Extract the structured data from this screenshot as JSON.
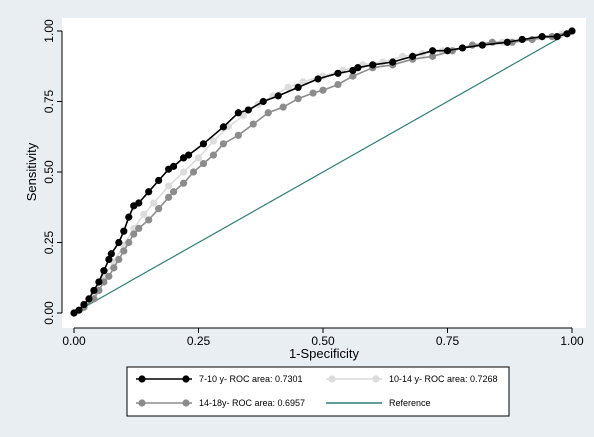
{
  "chart_data": {
    "type": "line",
    "title": "",
    "xlabel": "1-Specificity",
    "ylabel": "Sensitivity",
    "xlim": [
      0,
      1
    ],
    "ylim": [
      0,
      1
    ],
    "x_ticks": [
      "0.00",
      "0.25",
      "0.50",
      "0.75",
      "1.00"
    ],
    "y_ticks": [
      "0.00",
      "0.25",
      "0.50",
      "0.75",
      "1.00"
    ],
    "grid": false,
    "legend_position": "bottom",
    "series": [
      {
        "name": "7-10 y- ROC area: 0.7301",
        "color": "#000000",
        "marker": "circle",
        "points": [
          [
            0,
            0
          ],
          [
            0.01,
            0.01
          ],
          [
            0.02,
            0.03
          ],
          [
            0.03,
            0.05
          ],
          [
            0.04,
            0.08
          ],
          [
            0.05,
            0.11
          ],
          [
            0.06,
            0.15
          ],
          [
            0.07,
            0.19
          ],
          [
            0.075,
            0.21
          ],
          [
            0.09,
            0.25
          ],
          [
            0.1,
            0.29
          ],
          [
            0.11,
            0.34
          ],
          [
            0.12,
            0.38
          ],
          [
            0.13,
            0.39
          ],
          [
            0.15,
            0.43
          ],
          [
            0.17,
            0.47
          ],
          [
            0.19,
            0.51
          ],
          [
            0.2,
            0.52
          ],
          [
            0.22,
            0.55
          ],
          [
            0.23,
            0.56
          ],
          [
            0.26,
            0.6
          ],
          [
            0.3,
            0.66
          ],
          [
            0.33,
            0.71
          ],
          [
            0.35,
            0.72
          ],
          [
            0.38,
            0.75
          ],
          [
            0.41,
            0.77
          ],
          [
            0.45,
            0.8
          ],
          [
            0.49,
            0.83
          ],
          [
            0.53,
            0.85
          ],
          [
            0.56,
            0.86
          ],
          [
            0.57,
            0.87
          ],
          [
            0.6,
            0.88
          ],
          [
            0.64,
            0.89
          ],
          [
            0.68,
            0.91
          ],
          [
            0.72,
            0.93
          ],
          [
            0.75,
            0.93
          ],
          [
            0.78,
            0.94
          ],
          [
            0.82,
            0.95
          ],
          [
            0.87,
            0.96
          ],
          [
            0.9,
            0.97
          ],
          [
            0.94,
            0.98
          ],
          [
            0.97,
            0.98
          ],
          [
            0.99,
            0.99
          ],
          [
            1,
            1
          ]
        ]
      },
      {
        "name": "10-14 y- ROC area: 0.7268",
        "color": "#dcdcdc",
        "marker": "circle",
        "points": [
          [
            0,
            0
          ],
          [
            0.02,
            0.03
          ],
          [
            0.04,
            0.07
          ],
          [
            0.06,
            0.13
          ],
          [
            0.08,
            0.18
          ],
          [
            0.1,
            0.24
          ],
          [
            0.12,
            0.3
          ],
          [
            0.14,
            0.35
          ],
          [
            0.16,
            0.39
          ],
          [
            0.19,
            0.45
          ],
          [
            0.22,
            0.5
          ],
          [
            0.25,
            0.55
          ],
          [
            0.28,
            0.61
          ],
          [
            0.31,
            0.66
          ],
          [
            0.34,
            0.7
          ],
          [
            0.37,
            0.74
          ],
          [
            0.4,
            0.77
          ],
          [
            0.43,
            0.8
          ],
          [
            0.46,
            0.82
          ],
          [
            0.5,
            0.84
          ],
          [
            0.54,
            0.86
          ],
          [
            0.58,
            0.88
          ],
          [
            0.62,
            0.89
          ],
          [
            0.66,
            0.91
          ],
          [
            0.7,
            0.92
          ],
          [
            0.74,
            0.93
          ],
          [
            0.78,
            0.94
          ],
          [
            0.82,
            0.95
          ],
          [
            0.86,
            0.96
          ],
          [
            0.9,
            0.97
          ],
          [
            0.94,
            0.98
          ],
          [
            0.98,
            0.99
          ],
          [
            1,
            1
          ]
        ]
      },
      {
        "name": "14-18y- ROC area: 0.6957",
        "color": "#8c8c8c",
        "marker": "circle",
        "points": [
          [
            0,
            0
          ],
          [
            0.02,
            0.02
          ],
          [
            0.04,
            0.05
          ],
          [
            0.05,
            0.08
          ],
          [
            0.06,
            0.11
          ],
          [
            0.07,
            0.13
          ],
          [
            0.08,
            0.16
          ],
          [
            0.09,
            0.19
          ],
          [
            0.1,
            0.22
          ],
          [
            0.11,
            0.25
          ],
          [
            0.12,
            0.28
          ],
          [
            0.13,
            0.3
          ],
          [
            0.15,
            0.33
          ],
          [
            0.17,
            0.37
          ],
          [
            0.19,
            0.41
          ],
          [
            0.2,
            0.43
          ],
          [
            0.22,
            0.46
          ],
          [
            0.24,
            0.5
          ],
          [
            0.26,
            0.53
          ],
          [
            0.28,
            0.56
          ],
          [
            0.3,
            0.6
          ],
          [
            0.33,
            0.63
          ],
          [
            0.36,
            0.67
          ],
          [
            0.39,
            0.71
          ],
          [
            0.42,
            0.73
          ],
          [
            0.45,
            0.76
          ],
          [
            0.48,
            0.78
          ],
          [
            0.5,
            0.79
          ],
          [
            0.53,
            0.81
          ],
          [
            0.56,
            0.84
          ],
          [
            0.6,
            0.87
          ],
          [
            0.64,
            0.88
          ],
          [
            0.68,
            0.9
          ],
          [
            0.72,
            0.91
          ],
          [
            0.76,
            0.93
          ],
          [
            0.8,
            0.95
          ],
          [
            0.84,
            0.96
          ],
          [
            0.88,
            0.96
          ],
          [
            0.92,
            0.97
          ],
          [
            0.96,
            0.98
          ],
          [
            1,
            1
          ]
        ]
      },
      {
        "name": "Reference",
        "color": "#2e7d7a",
        "marker": "none",
        "points": [
          [
            0,
            0
          ],
          [
            1,
            1
          ]
        ]
      }
    ]
  }
}
